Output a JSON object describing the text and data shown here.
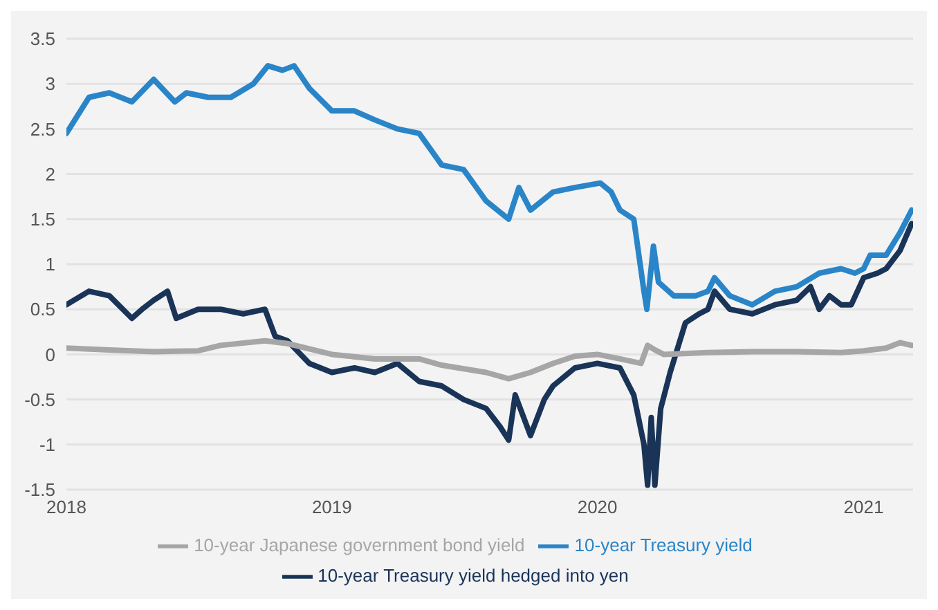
{
  "chart_data": {
    "type": "line",
    "xlim": [
      "2018-01-01",
      "2021-03-10"
    ],
    "xticks": [
      {
        "value": "2018-01-01",
        "label": "2018"
      },
      {
        "value": "2019-01-01",
        "label": "2019"
      },
      {
        "value": "2020-01-01",
        "label": "2020"
      },
      {
        "value": "2021-01-01",
        "label": "2021"
      }
    ],
    "ylim": [
      -1.5,
      3.5
    ],
    "yticks": [
      -1.5,
      -1,
      -0.5,
      0,
      0.5,
      1,
      1.5,
      2,
      2.5,
      3,
      3.5
    ],
    "grid": "y",
    "legend": "bottom",
    "line_style": "solid",
    "marker": "none",
    "series": [
      {
        "name": "10-year Treasury yield",
        "color": "#2a85c8",
        "x": [
          "2018-01-01",
          "2018-02-01",
          "2018-03-01",
          "2018-04-01",
          "2018-05-01",
          "2018-05-30",
          "2018-06-15",
          "2018-07-15",
          "2018-08-15",
          "2018-09-15",
          "2018-10-05",
          "2018-10-25",
          "2018-11-10",
          "2018-12-01",
          "2019-01-01",
          "2019-02-01",
          "2019-03-01",
          "2019-04-01",
          "2019-05-01",
          "2019-06-01",
          "2019-07-01",
          "2019-08-01",
          "2019-09-01",
          "2019-09-15",
          "2019-10-01",
          "2019-11-01",
          "2019-12-01",
          "2020-01-05",
          "2020-01-20",
          "2020-02-01",
          "2020-02-20",
          "2020-03-05",
          "2020-03-09",
          "2020-03-18",
          "2020-03-25",
          "2020-04-15",
          "2020-05-15",
          "2020-06-01",
          "2020-06-10",
          "2020-07-01",
          "2020-08-01",
          "2020-09-01",
          "2020-10-01",
          "2020-11-01",
          "2020-12-01",
          "2020-12-20",
          "2021-01-01",
          "2021-01-10",
          "2021-02-01",
          "2021-02-20",
          "2021-03-08"
        ],
        "values": [
          2.45,
          2.85,
          2.9,
          2.8,
          3.05,
          2.8,
          2.9,
          2.85,
          2.85,
          3.0,
          3.2,
          3.15,
          3.2,
          2.95,
          2.7,
          2.7,
          2.6,
          2.5,
          2.45,
          2.1,
          2.05,
          1.7,
          1.5,
          1.85,
          1.6,
          1.8,
          1.85,
          1.9,
          1.8,
          1.6,
          1.5,
          0.7,
          0.5,
          1.2,
          0.8,
          0.65,
          0.65,
          0.7,
          0.85,
          0.65,
          0.55,
          0.7,
          0.75,
          0.9,
          0.95,
          0.9,
          0.95,
          1.1,
          1.1,
          1.35,
          1.6
        ]
      },
      {
        "name": "10-year Treasury yield hedged into yen",
        "color": "#1a3458",
        "x": [
          "2018-01-01",
          "2018-02-01",
          "2018-03-01",
          "2018-04-01",
          "2018-04-15",
          "2018-05-01",
          "2018-05-20",
          "2018-06-01",
          "2018-07-01",
          "2018-08-01",
          "2018-09-01",
          "2018-10-01",
          "2018-10-15",
          "2018-11-01",
          "2018-12-01",
          "2019-01-01",
          "2019-02-01",
          "2019-03-01",
          "2019-04-01",
          "2019-05-01",
          "2019-06-01",
          "2019-07-01",
          "2019-08-01",
          "2019-08-20",
          "2019-09-01",
          "2019-09-10",
          "2019-10-01",
          "2019-10-20",
          "2019-11-01",
          "2019-12-01",
          "2020-01-01",
          "2020-02-01",
          "2020-02-20",
          "2020-03-05",
          "2020-03-10",
          "2020-03-15",
          "2020-03-20",
          "2020-03-28",
          "2020-04-10",
          "2020-05-01",
          "2020-05-20",
          "2020-06-01",
          "2020-06-10",
          "2020-07-01",
          "2020-08-01",
          "2020-09-01",
          "2020-10-01",
          "2020-10-20",
          "2020-11-01",
          "2020-11-15",
          "2020-12-01",
          "2020-12-15",
          "2021-01-01",
          "2021-01-20",
          "2021-02-01",
          "2021-02-20",
          "2021-03-08"
        ],
        "values": [
          0.55,
          0.7,
          0.65,
          0.4,
          0.5,
          0.6,
          0.7,
          0.4,
          0.5,
          0.5,
          0.45,
          0.5,
          0.2,
          0.15,
          -0.1,
          -0.2,
          -0.15,
          -0.2,
          -0.1,
          -0.3,
          -0.35,
          -0.5,
          -0.6,
          -0.8,
          -0.95,
          -0.45,
          -0.9,
          -0.5,
          -0.35,
          -0.15,
          -0.1,
          -0.15,
          -0.45,
          -1.0,
          -1.45,
          -0.7,
          -1.45,
          -0.6,
          -0.2,
          0.35,
          0.45,
          0.5,
          0.7,
          0.5,
          0.45,
          0.55,
          0.6,
          0.75,
          0.5,
          0.65,
          0.55,
          0.55,
          0.85,
          0.9,
          0.95,
          1.15,
          1.45
        ]
      },
      {
        "name": "10-year Japanese government bond yield",
        "color": "#a6a6a6",
        "x": [
          "2018-01-01",
          "2018-03-01",
          "2018-05-01",
          "2018-07-01",
          "2018-08-01",
          "2018-10-01",
          "2018-11-01",
          "2019-01-01",
          "2019-03-01",
          "2019-05-01",
          "2019-06-01",
          "2019-08-01",
          "2019-09-01",
          "2019-10-01",
          "2019-11-01",
          "2019-12-01",
          "2020-01-01",
          "2020-02-01",
          "2020-03-01",
          "2020-03-10",
          "2020-03-20",
          "2020-04-01",
          "2020-06-01",
          "2020-08-01",
          "2020-10-01",
          "2020-12-01",
          "2021-01-01",
          "2021-02-01",
          "2021-02-20",
          "2021-03-08"
        ],
        "values": [
          0.07,
          0.05,
          0.03,
          0.04,
          0.1,
          0.15,
          0.12,
          0.0,
          -0.05,
          -0.05,
          -0.12,
          -0.2,
          -0.27,
          -0.2,
          -0.1,
          -0.02,
          0.0,
          -0.05,
          -0.1,
          0.1,
          0.05,
          0.0,
          0.02,
          0.03,
          0.03,
          0.02,
          0.04,
          0.07,
          0.13,
          0.1
        ]
      }
    ]
  }
}
